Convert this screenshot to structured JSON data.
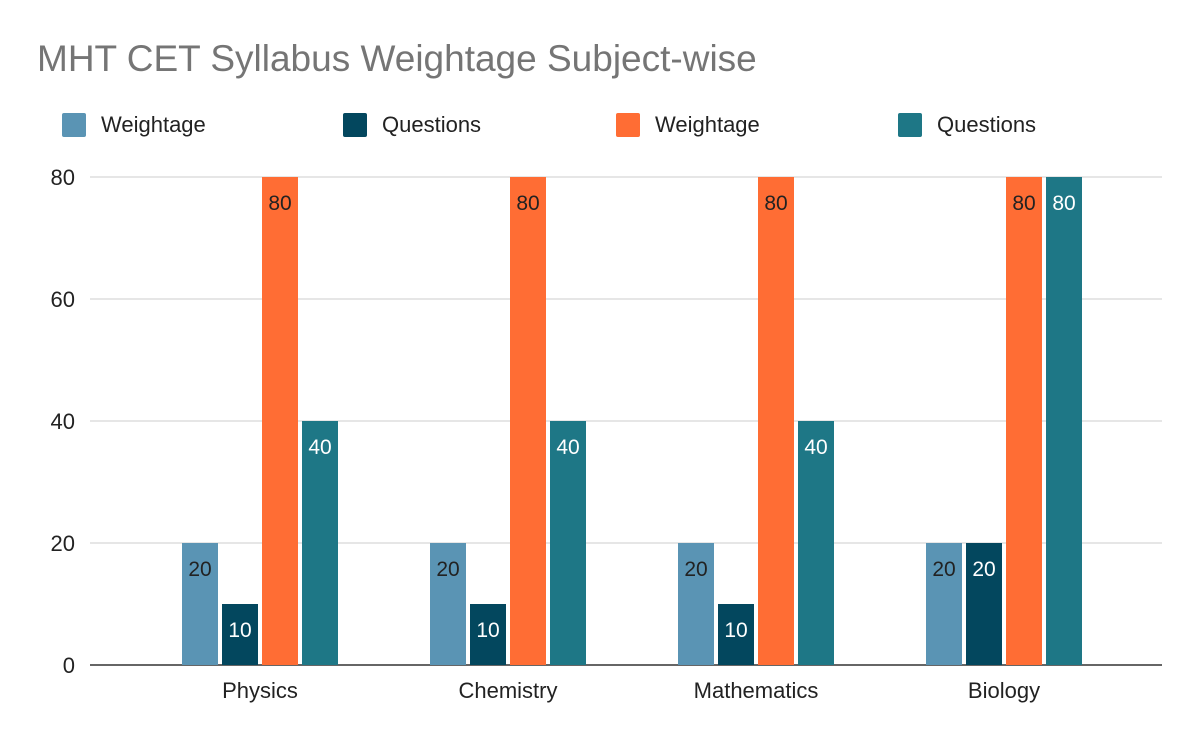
{
  "chart_data": {
    "type": "bar",
    "title": "MHT CET Syllabus Weightage Subject-wise",
    "xlabel": "",
    "ylabel": "",
    "categories": [
      "Physics",
      "Chemistry",
      "Mathematics",
      "Biology"
    ],
    "series": [
      {
        "name": "Weightage",
        "color": "#5a94b4",
        "label_color": "#222222",
        "values": [
          20,
          20,
          20,
          20
        ]
      },
      {
        "name": "Questions",
        "color": "#03475e",
        "label_color": "#ffffff",
        "values": [
          10,
          10,
          10,
          20
        ]
      },
      {
        "name": "Weightage",
        "color": "#ff6d34",
        "label_color": "#222222",
        "values": [
          80,
          80,
          80,
          80
        ]
      },
      {
        "name": "Questions",
        "color": "#1e7786",
        "label_color": "#ffffff",
        "values": [
          40,
          40,
          40,
          80
        ]
      }
    ],
    "ylim": [
      0,
      80
    ],
    "yticks": [
      "0",
      "20",
      "40",
      "60",
      "80"
    ],
    "grid": true,
    "legend_position": "top"
  }
}
